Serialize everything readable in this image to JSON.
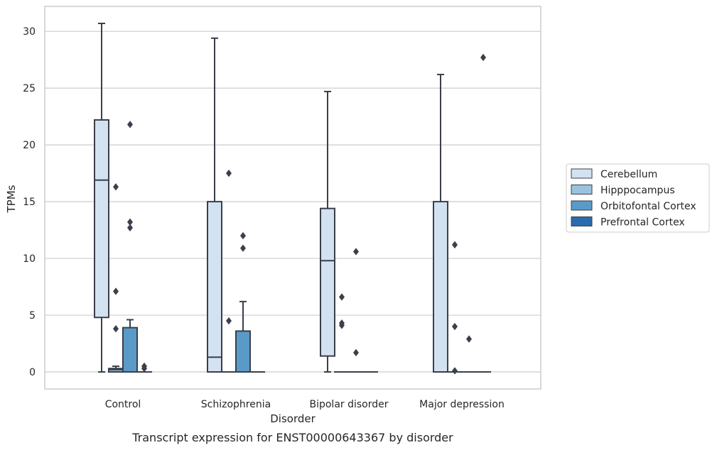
{
  "chart_data": {
    "type": "box",
    "title": "",
    "caption": "Transcript expression for ENST00000643367 by disorder",
    "xlabel": "Disorder",
    "ylabel": "TPMs",
    "ylim": [
      -1.5,
      32.2
    ],
    "yticks": [
      0,
      5,
      10,
      15,
      20,
      25,
      30
    ],
    "grid": "horizontal",
    "legend_position": "right",
    "categories": [
      "Control",
      "Schizophrenia",
      "Bipolar disorder",
      "Major depression"
    ],
    "series": [
      {
        "name": "Cerebellum",
        "color": "#d3e2f1",
        "boxes": [
          {
            "category": "Control",
            "whisker_low": 0,
            "q1": 4.8,
            "median": 16.9,
            "q3": 22.2,
            "whisker_high": 30.7,
            "outliers": []
          },
          {
            "category": "Schizophrenia",
            "whisker_low": 0,
            "q1": 0,
            "median": 1.3,
            "q3": 15.0,
            "whisker_high": 29.4,
            "outliers": []
          },
          {
            "category": "Bipolar disorder",
            "whisker_low": 0,
            "q1": 1.4,
            "median": 9.8,
            "q3": 14.4,
            "whisker_high": 24.7,
            "outliers": []
          },
          {
            "category": "Major depression",
            "whisker_low": 0,
            "q1": 0,
            "median": 0,
            "q3": 15.0,
            "whisker_high": 26.2,
            "outliers": []
          }
        ]
      },
      {
        "name": "Hipppocampus",
        "color": "#9ac3de",
        "boxes": [
          {
            "category": "Control",
            "whisker_low": 0,
            "q1": 0,
            "median": 0.2,
            "q3": 0.3,
            "whisker_high": 0.5,
            "outliers": [
              16.3,
              7.1,
              3.8
            ]
          },
          {
            "category": "Schizophrenia",
            "whisker_low": 0,
            "q1": 0,
            "median": 0,
            "q3": 0,
            "whisker_high": 0,
            "outliers": [
              17.5,
              4.5
            ]
          },
          {
            "category": "Bipolar disorder",
            "whisker_low": 0,
            "q1": 0,
            "median": 0,
            "q3": 0,
            "whisker_high": 0,
            "outliers": [
              6.6,
              4.3,
              4.1
            ]
          },
          {
            "category": "Major depression",
            "whisker_low": 0,
            "q1": 0,
            "median": 0,
            "q3": 0,
            "whisker_high": 0,
            "outliers": [
              11.2,
              4.0,
              0.1
            ]
          }
        ]
      },
      {
        "name": "Orbitofontal Cortex",
        "color": "#5a9ac9",
        "boxes": [
          {
            "category": "Control",
            "whisker_low": 0,
            "q1": 0,
            "median": 0,
            "q3": 3.9,
            "whisker_high": 4.6,
            "outliers": [
              21.8,
              13.2,
              12.7
            ]
          },
          {
            "category": "Schizophrenia",
            "whisker_low": 0,
            "q1": 0,
            "median": 0,
            "q3": 3.6,
            "whisker_high": 6.2,
            "outliers": [
              12.0,
              10.9
            ]
          },
          {
            "category": "Bipolar disorder",
            "whisker_low": 0,
            "q1": 0,
            "median": 0,
            "q3": 0,
            "whisker_high": 0,
            "outliers": [
              10.6,
              1.7
            ]
          },
          {
            "category": "Major depression",
            "whisker_low": 0,
            "q1": 0,
            "median": 0,
            "q3": 0,
            "whisker_high": 0,
            "outliers": [
              2.9
            ]
          }
        ]
      },
      {
        "name": "Prefrontal Cortex",
        "color": "#2c6bad",
        "boxes": [
          {
            "category": "Control",
            "whisker_low": 0,
            "q1": 0,
            "median": 0,
            "q3": 0,
            "whisker_high": 0,
            "outliers": [
              0.5,
              0.3
            ]
          },
          {
            "category": "Schizophrenia",
            "whisker_low": 0,
            "q1": 0,
            "median": 0,
            "q3": 0,
            "whisker_high": 0,
            "outliers": []
          },
          {
            "category": "Bipolar disorder",
            "whisker_low": 0,
            "q1": 0,
            "median": 0,
            "q3": 0,
            "whisker_high": 0,
            "outliers": []
          },
          {
            "category": "Major depression",
            "whisker_low": 0,
            "q1": 0,
            "median": 0,
            "q3": 0,
            "whisker_high": 0,
            "outliers": [
              27.7
            ]
          }
        ]
      }
    ]
  }
}
